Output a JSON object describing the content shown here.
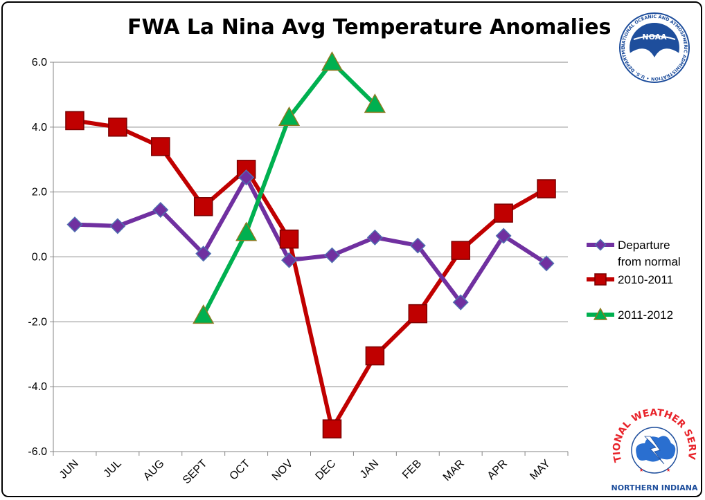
{
  "chart_data": {
    "type": "line",
    "title": "FWA La Nina Avg Temperature Anomalies",
    "categories": [
      "JUN",
      "JUL",
      "AUG",
      "SEPT",
      "OCT",
      "NOV",
      "DEC",
      "JAN",
      "FEB",
      "MAR",
      "APR",
      "MAY"
    ],
    "ylim": [
      -6,
      6
    ],
    "yticks": [
      "6.0",
      "4.0",
      "2.0",
      "0.0",
      "-2.0",
      "-4.0",
      "-6.0"
    ],
    "ytick_values": [
      6,
      4,
      2,
      0,
      -2,
      -4,
      -6
    ],
    "grid": true,
    "legend_position": "right",
    "series": [
      {
        "name": "Departure from normal",
        "name_lines": [
          "Departure",
          "from normal"
        ],
        "color": "#7030a0",
        "marker": "diamond",
        "values": [
          1.0,
          0.95,
          1.45,
          0.1,
          2.45,
          -0.1,
          0.05,
          0.6,
          0.35,
          -1.4,
          0.65,
          -0.2
        ]
      },
      {
        "name": "2010-2011",
        "name_lines": [
          "2010-2011"
        ],
        "color": "#c00000",
        "marker": "square",
        "values": [
          4.2,
          4.0,
          3.4,
          1.55,
          2.7,
          0.55,
          -5.3,
          -3.05,
          -1.75,
          0.2,
          1.35,
          2.1
        ]
      },
      {
        "name": "2011-2012",
        "name_lines": [
          "2011-2012"
        ],
        "color": "#00b050",
        "marker": "triangle",
        "values": [
          null,
          null,
          null,
          -1.8,
          0.75,
          4.3,
          6.0,
          4.7,
          null,
          null,
          null,
          null
        ]
      }
    ]
  },
  "logos": {
    "noaa": {
      "name": "NOAA",
      "text": "NOAA",
      "ring_text": "NATIONAL OCEANIC AND ATMOSPHERIC ADMINISTRATION • U.S. DEPARTMENT OF COMMERCE"
    },
    "nws": {
      "name": "National Weather Service",
      "ring_text": "NATIONAL WEATHER SERVICE",
      "office": "NORTHERN INDIANA"
    }
  },
  "colors": {
    "purple": "#7030a0",
    "red": "#c00000",
    "green": "#00b050",
    "gridline": "#868686",
    "nws_red": "#e8232a",
    "noaa_blue": "#1e4e9c"
  }
}
